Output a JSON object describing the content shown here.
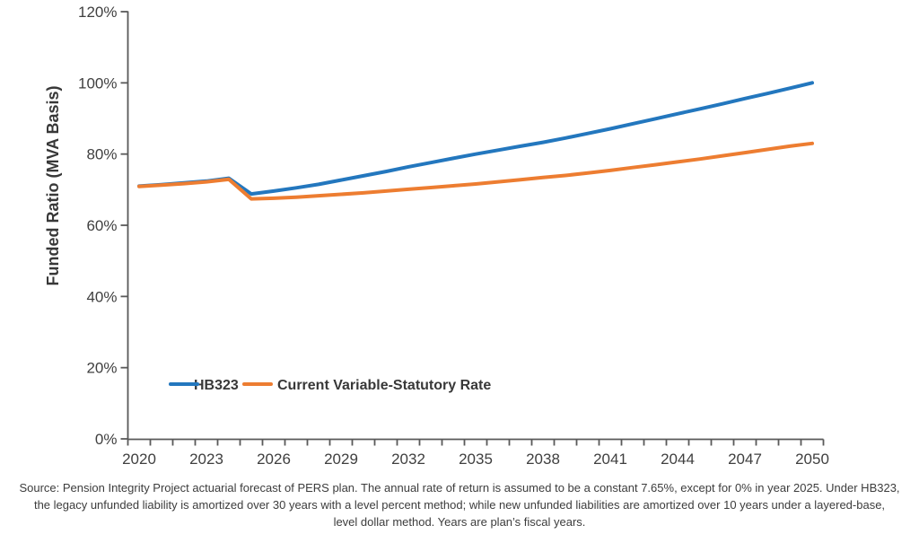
{
  "footnote": {
    "lines": [
      "Source: Pension Integrity Project actuarial forecast of PERS plan. The annual rate of return is assumed to be a constant 7.65%, except for 0% in year 2025. Under HB323,",
      "the legacy unfunded liability is amortized over 30 years with a level percent method; while new unfunded liabilities are amortized over 10 years under a layered-base,",
      "level dollar method. Years are plan’s fiscal years."
    ]
  },
  "chart_data": {
    "type": "line",
    "title": "",
    "xlabel": "",
    "ylabel": "Funded Ratio (MVA Basis)",
    "grid": false,
    "legend_position": "inside-bottom-left",
    "axis_color": "#595959",
    "tick_label_color": "#3f3f3f",
    "y_min": 0,
    "y_max": 120,
    "y_step": 20,
    "y_tick_format": "percent",
    "y_tick_labels": [
      "0%",
      "20%",
      "40%",
      "60%",
      "80%",
      "100%",
      "120%"
    ],
    "x_start": 2020,
    "x_end": 2050,
    "x_tick_labels": [
      2020,
      2023,
      2026,
      2029,
      2032,
      2035,
      2038,
      2041,
      2044,
      2047,
      2050
    ],
    "years": [
      2020,
      2021,
      2022,
      2023,
      2024,
      2025,
      2026,
      2027,
      2028,
      2029,
      2030,
      2031,
      2032,
      2033,
      2034,
      2035,
      2036,
      2037,
      2038,
      2039,
      2040,
      2041,
      2042,
      2043,
      2044,
      2045,
      2046,
      2047,
      2048,
      2049,
      2050
    ],
    "series": [
      {
        "name": "HB323",
        "color": "#2377BE",
        "values": [
          71.0,
          71.4,
          71.9,
          72.4,
          73.2,
          68.8,
          69.6,
          70.5,
          71.5,
          72.7,
          73.9,
          75.1,
          76.4,
          77.6,
          78.8,
          80.0,
          81.1,
          82.2,
          83.3,
          84.5,
          85.8,
          87.1,
          88.5,
          89.9,
          91.3,
          92.7,
          94.1,
          95.6,
          97.0,
          98.5,
          100.0
        ]
      },
      {
        "name": "Current Variable-Statutory Rate",
        "color": "#ED7D31",
        "values": [
          70.9,
          71.3,
          71.7,
          72.2,
          72.9,
          67.4,
          67.6,
          67.9,
          68.3,
          68.7,
          69.1,
          69.6,
          70.1,
          70.6,
          71.1,
          71.6,
          72.2,
          72.8,
          73.4,
          74.0,
          74.7,
          75.4,
          76.2,
          77.0,
          77.8,
          78.6,
          79.5,
          80.4,
          81.3,
          82.2,
          83.0
        ]
      }
    ]
  }
}
